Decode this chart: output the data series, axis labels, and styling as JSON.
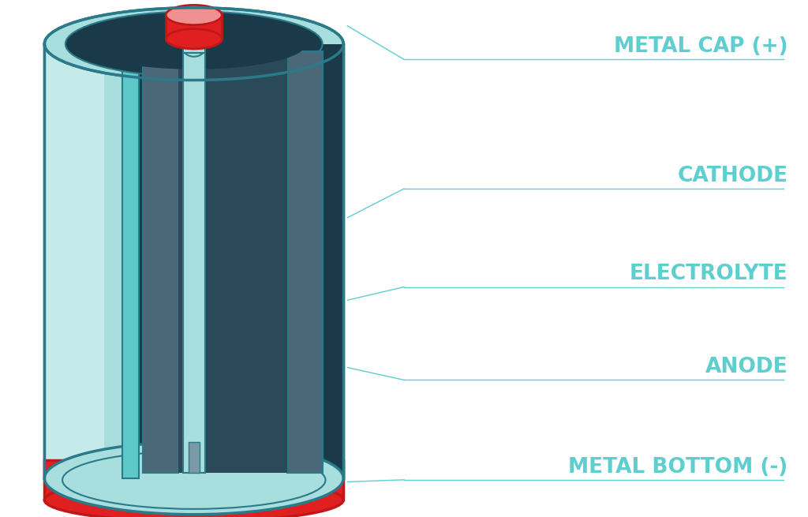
{
  "bg_color": "#ffffff",
  "c_teal_light": "#a8dede",
  "c_teal_lighter": "#c5eaea",
  "c_teal_mid": "#5ec8c8",
  "c_teal_dark": "#1a6070",
  "c_teal_outline": "#2a7a8a",
  "c_navy": "#1a3a4a",
  "c_navy2": "#2a4a5a",
  "c_slate": "#4a6878",
  "c_slate2": "#5a7888",
  "c_gray_inner": "#7a9aa8",
  "c_red": "#e02020",
  "c_red_dark": "#c01818",
  "c_pink": "#f09090",
  "c_label": "#5ecece",
  "labels": [
    "METAL CAP (+)",
    "CATHODE",
    "ELECTROLYTE",
    "ANODE",
    "METAL BOTTOM (-)"
  ],
  "label_fontsize": 19,
  "bx": 0.055,
  "bw": 0.37,
  "by": 0.075,
  "bh": 0.84,
  "eh": 0.07
}
